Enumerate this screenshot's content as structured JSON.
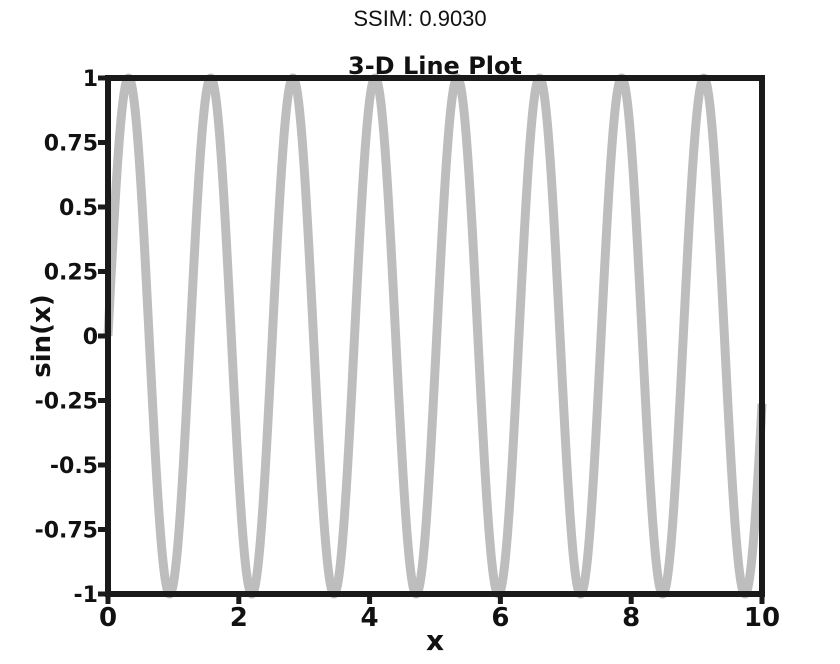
{
  "header": {
    "label": "SSIM: 0.9030"
  },
  "chart_data": {
    "type": "line",
    "title": "3-D Line Plot",
    "xlabel": "x",
    "ylabel": "sin(x)",
    "xlim": [
      0,
      10
    ],
    "ylim": [
      -1,
      1
    ],
    "x_ticks": [
      0,
      2,
      4,
      6,
      8,
      10
    ],
    "x_tick_labels": [
      "0",
      "2",
      "4",
      "6",
      "8",
      "10"
    ],
    "y_ticks": [
      -1,
      -0.75,
      -0.5,
      -0.25,
      0,
      0.25,
      0.5,
      0.75,
      1
    ],
    "y_tick_labels": [
      "-1",
      "-0.75",
      "-0.5",
      "-0.25",
      "0",
      "0.25",
      "0.5",
      "0.75",
      "1"
    ],
    "grid": false,
    "legend": "none",
    "series": [
      {
        "function": "sin",
        "frequency": 5,
        "x_range": [
          0,
          10
        ],
        "color": "#bdbdbd"
      }
    ]
  }
}
